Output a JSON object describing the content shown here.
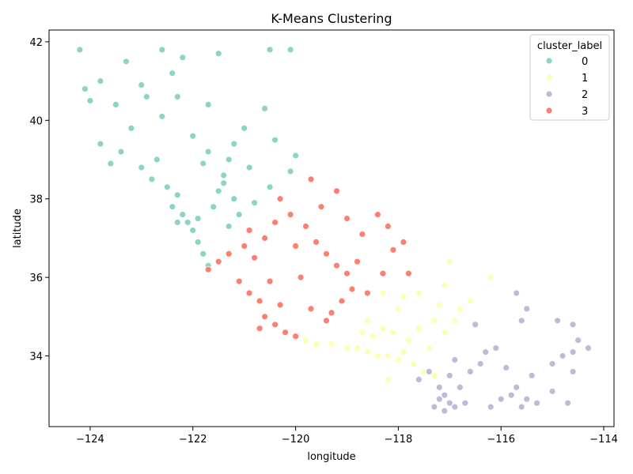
{
  "chart_data": {
    "type": "scatter",
    "title": "K-Means Clustering",
    "xlabel": "longitude",
    "ylabel": "latitude",
    "xlim": [
      -124.8,
      -113.8
    ],
    "ylim": [
      32.2,
      42.3
    ],
    "xticks": [
      -124,
      -122,
      -120,
      -118,
      -116,
      -114
    ],
    "yticks": [
      34,
      36,
      38,
      40,
      42
    ],
    "xtick_labels": [
      "−124",
      "−122",
      "−120",
      "−118",
      "−116",
      "−114"
    ],
    "ytick_labels": [
      "34",
      "36",
      "38",
      "40",
      "42"
    ],
    "grid": false,
    "legend": {
      "title": "cluster_label",
      "placement": "top-right",
      "entries": [
        {
          "label": "0",
          "color": "#8dd3c7"
        },
        {
          "label": "1",
          "color": "#ffffb3"
        },
        {
          "label": "2",
          "color": "#bebada"
        },
        {
          "label": "3",
          "color": "#fb8072"
        }
      ]
    },
    "series": [
      {
        "name": "0",
        "color": "#8dd3c7",
        "points": [
          [
            -124.2,
            41.8
          ],
          [
            -124.1,
            40.8
          ],
          [
            -124.0,
            40.5
          ],
          [
            -123.8,
            41.0
          ],
          [
            -123.5,
            40.4
          ],
          [
            -123.3,
            41.5
          ],
          [
            -123.0,
            40.9
          ],
          [
            -123.2,
            39.8
          ],
          [
            -123.8,
            39.4
          ],
          [
            -123.6,
            38.9
          ],
          [
            -123.4,
            39.2
          ],
          [
            -123.0,
            38.8
          ],
          [
            -122.8,
            38.5
          ],
          [
            -122.7,
            39.0
          ],
          [
            -122.5,
            38.3
          ],
          [
            -122.3,
            38.1
          ],
          [
            -122.4,
            37.8
          ],
          [
            -122.2,
            37.6
          ],
          [
            -122.1,
            37.4
          ],
          [
            -122.0,
            37.2
          ],
          [
            -121.9,
            36.9
          ],
          [
            -121.8,
            36.6
          ],
          [
            -121.7,
            36.3
          ],
          [
            -121.9,
            37.5
          ],
          [
            -121.6,
            37.8
          ],
          [
            -121.5,
            38.2
          ],
          [
            -121.4,
            38.6
          ],
          [
            -121.3,
            39.0
          ],
          [
            -121.2,
            39.4
          ],
          [
            -121.0,
            39.8
          ],
          [
            -121.7,
            40.4
          ],
          [
            -122.3,
            40.6
          ],
          [
            -122.4,
            41.2
          ],
          [
            -122.6,
            41.8
          ],
          [
            -121.5,
            41.7
          ],
          [
            -120.5,
            41.8
          ],
          [
            -120.1,
            41.8
          ],
          [
            -120.6,
            40.3
          ],
          [
            -120.4,
            39.5
          ],
          [
            -120.0,
            39.1
          ],
          [
            -120.1,
            38.7
          ],
          [
            -120.5,
            38.3
          ],
          [
            -120.8,
            37.9
          ],
          [
            -121.1,
            37.6
          ],
          [
            -121.3,
            37.3
          ],
          [
            -120.9,
            38.8
          ],
          [
            -121.2,
            38.0
          ],
          [
            -121.8,
            38.9
          ],
          [
            -122.0,
            39.6
          ],
          [
            -122.6,
            40.1
          ],
          [
            -122.9,
            40.6
          ],
          [
            -122.2,
            41.6
          ],
          [
            -121.7,
            39.2
          ],
          [
            -121.4,
            38.4
          ],
          [
            -122.3,
            37.4
          ]
        ]
      },
      {
        "name": "1",
        "color": "#ffffb3",
        "points": [
          [
            -119.8,
            34.4
          ],
          [
            -119.6,
            34.3
          ],
          [
            -119.3,
            34.3
          ],
          [
            -119.0,
            34.2
          ],
          [
            -118.8,
            34.2
          ],
          [
            -118.6,
            34.1
          ],
          [
            -118.4,
            34.0
          ],
          [
            -118.2,
            34.0
          ],
          [
            -118.0,
            33.9
          ],
          [
            -117.9,
            34.1
          ],
          [
            -117.8,
            34.4
          ],
          [
            -117.6,
            34.7
          ],
          [
            -117.3,
            34.9
          ],
          [
            -117.1,
            34.6
          ],
          [
            -116.9,
            34.9
          ],
          [
            -117.4,
            34.2
          ],
          [
            -117.7,
            33.8
          ],
          [
            -118.1,
            34.6
          ],
          [
            -118.3,
            34.7
          ],
          [
            -118.5,
            34.5
          ],
          [
            -117.2,
            35.3
          ],
          [
            -117.6,
            35.6
          ],
          [
            -117.9,
            35.5
          ],
          [
            -118.0,
            35.2
          ],
          [
            -117.5,
            33.6
          ],
          [
            -117.3,
            33.5
          ],
          [
            -118.2,
            33.4
          ],
          [
            -117.0,
            36.4
          ],
          [
            -116.6,
            35.4
          ],
          [
            -116.2,
            36.0
          ],
          [
            -118.6,
            34.9
          ],
          [
            -118.3,
            35.6
          ],
          [
            -116.8,
            35.2
          ],
          [
            -117.1,
            35.8
          ],
          [
            -118.7,
            34.6
          ]
        ]
      },
      {
        "name": "2",
        "color": "#bebada",
        "points": [
          [
            -117.6,
            33.4
          ],
          [
            -117.4,
            33.6
          ],
          [
            -117.2,
            33.2
          ],
          [
            -117.1,
            33.0
          ],
          [
            -117.0,
            32.8
          ],
          [
            -116.9,
            32.7
          ],
          [
            -117.1,
            32.6
          ],
          [
            -117.2,
            32.9
          ],
          [
            -116.8,
            33.2
          ],
          [
            -116.6,
            33.6
          ],
          [
            -116.4,
            33.8
          ],
          [
            -116.3,
            34.1
          ],
          [
            -116.1,
            34.2
          ],
          [
            -115.9,
            33.7
          ],
          [
            -115.7,
            33.2
          ],
          [
            -115.5,
            32.9
          ],
          [
            -115.6,
            32.7
          ],
          [
            -115.8,
            33.0
          ],
          [
            -116.0,
            32.9
          ],
          [
            -115.4,
            33.5
          ],
          [
            -115.0,
            33.8
          ],
          [
            -114.8,
            34.0
          ],
          [
            -114.6,
            34.1
          ],
          [
            -114.5,
            34.4
          ],
          [
            -114.3,
            34.2
          ],
          [
            -114.6,
            34.8
          ],
          [
            -114.6,
            33.6
          ],
          [
            -114.7,
            32.8
          ],
          [
            -115.0,
            33.1
          ],
          [
            -115.6,
            34.9
          ],
          [
            -115.7,
            35.6
          ],
          [
            -115.5,
            35.2
          ],
          [
            -116.5,
            34.8
          ],
          [
            -116.9,
            33.9
          ],
          [
            -117.3,
            32.7
          ],
          [
            -117.0,
            33.5
          ],
          [
            -116.7,
            32.8
          ],
          [
            -116.2,
            32.7
          ],
          [
            -115.3,
            32.8
          ],
          [
            -114.9,
            34.9
          ]
        ]
      },
      {
        "name": "3",
        "color": "#fb8072",
        "points": [
          [
            -121.7,
            36.2
          ],
          [
            -121.5,
            36.4
          ],
          [
            -121.3,
            36.6
          ],
          [
            -121.1,
            35.9
          ],
          [
            -120.9,
            35.6
          ],
          [
            -120.7,
            35.4
          ],
          [
            -120.6,
            35.0
          ],
          [
            -120.4,
            34.8
          ],
          [
            -120.2,
            34.6
          ],
          [
            -120.0,
            34.5
          ],
          [
            -120.3,
            35.3
          ],
          [
            -120.5,
            35.9
          ],
          [
            -120.8,
            36.5
          ],
          [
            -120.6,
            37.0
          ],
          [
            -120.4,
            37.4
          ],
          [
            -120.1,
            37.6
          ],
          [
            -119.8,
            37.3
          ],
          [
            -119.6,
            36.9
          ],
          [
            -119.4,
            36.6
          ],
          [
            -119.2,
            36.3
          ],
          [
            -119.0,
            36.1
          ],
          [
            -118.9,
            35.7
          ],
          [
            -119.1,
            35.4
          ],
          [
            -119.3,
            35.1
          ],
          [
            -119.7,
            35.2
          ],
          [
            -119.9,
            36.0
          ],
          [
            -120.0,
            36.8
          ],
          [
            -119.5,
            37.8
          ],
          [
            -119.2,
            38.2
          ],
          [
            -119.7,
            38.5
          ],
          [
            -119.0,
            37.5
          ],
          [
            -118.7,
            37.1
          ],
          [
            -118.4,
            37.6
          ],
          [
            -118.2,
            37.3
          ],
          [
            -118.1,
            36.7
          ],
          [
            -118.3,
            36.1
          ],
          [
            -118.6,
            35.6
          ],
          [
            -117.9,
            36.9
          ],
          [
            -117.8,
            36.1
          ],
          [
            -120.9,
            37.2
          ],
          [
            -120.3,
            38.0
          ],
          [
            -119.4,
            34.9
          ],
          [
            -118.8,
            36.4
          ],
          [
            -121.0,
            36.8
          ],
          [
            -120.7,
            34.7
          ]
        ]
      }
    ]
  }
}
